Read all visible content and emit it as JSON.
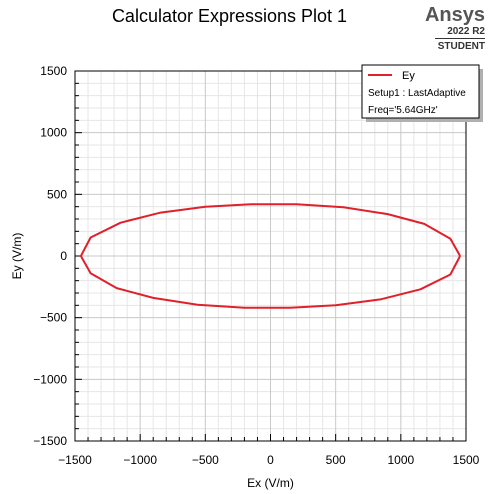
{
  "title": "Calculator Expressions Plot 1",
  "brand": {
    "name": "Ansys",
    "version": "2022 R2",
    "edition": "STUDENT"
  },
  "colors": {
    "series": "#e0202a",
    "grid_major": "#c8c8c8",
    "grid_minor": "#e6e6e6"
  },
  "chart_data": {
    "type": "line",
    "title": "Calculator Expressions Plot 1",
    "xlabel": "Ex (V/m)",
    "ylabel": "Ey (V/m)",
    "xlim": [
      -1500,
      1500
    ],
    "ylim": [
      -1500,
      1500
    ],
    "xticks": [
      -1500,
      -1000,
      -500,
      0,
      500,
      1000,
      1500
    ],
    "yticks": [
      -1500,
      -1000,
      -500,
      0,
      500,
      1000,
      1500
    ],
    "grid": true,
    "legend_position": "top-right",
    "legend": {
      "series_name": "Ey",
      "lines": [
        "Setup1 : LastAdaptive",
        "Freq='5.64GHz'"
      ]
    },
    "series": [
      {
        "name": "Ey",
        "x": [
          1455,
          1380,
          1180,
          900,
          560,
          200,
          -150,
          -500,
          -850,
          -1150,
          -1380,
          -1455,
          -1380,
          -1180,
          -900,
          -560,
          -200,
          150,
          500,
          850,
          1150,
          1380,
          1455
        ],
        "y": [
          0,
          140,
          260,
          340,
          395,
          420,
          420,
          400,
          350,
          270,
          150,
          0,
          -140,
          -260,
          -340,
          -395,
          -420,
          -420,
          -400,
          -350,
          -270,
          -150,
          0
        ]
      }
    ]
  }
}
